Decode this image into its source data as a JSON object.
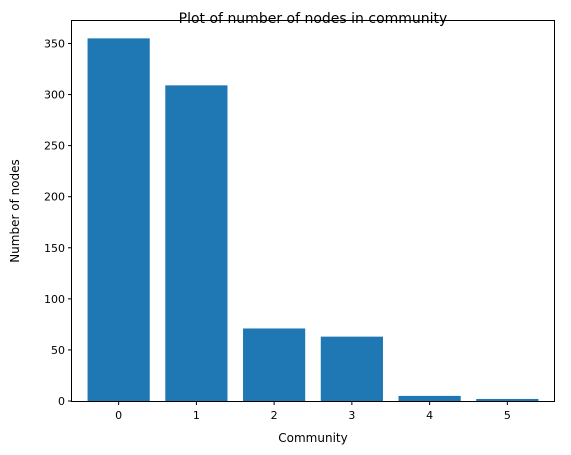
{
  "chart_data": {
    "type": "bar",
    "title": "Plot of number of nodes in community",
    "xlabel": "Community",
    "ylabel": "Number of nodes",
    "categories": [
      "0",
      "1",
      "2",
      "3",
      "4",
      "5"
    ],
    "values": [
      355,
      309,
      71,
      63,
      5,
      2
    ],
    "ylim": [
      0,
      372
    ],
    "yticks": [
      0,
      50,
      100,
      150,
      200,
      250,
      300,
      350
    ],
    "grid": false,
    "bar_color": "#1f77b4"
  }
}
